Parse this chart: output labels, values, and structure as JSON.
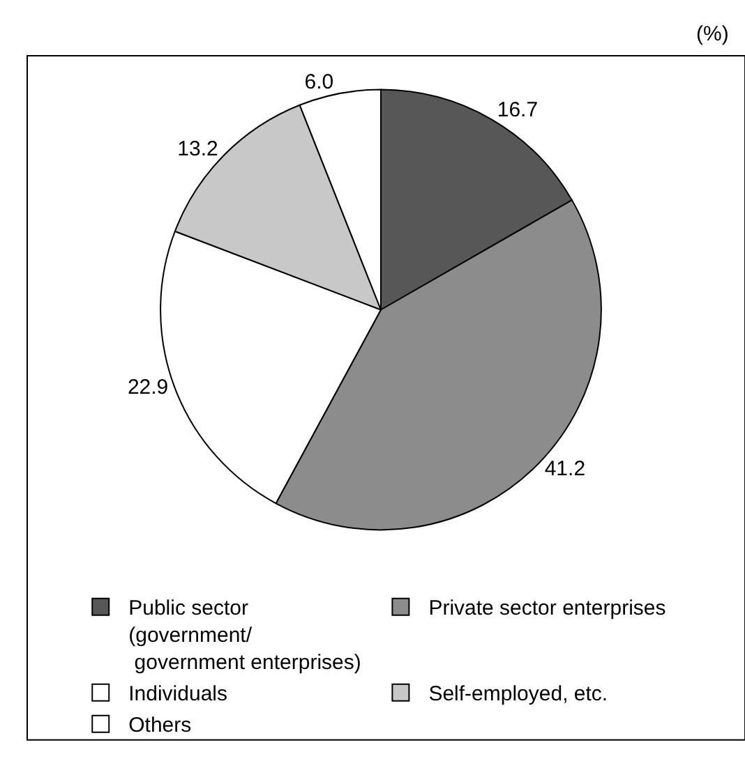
{
  "chart_data": {
    "type": "pie",
    "annotations": [
      "(%)"
    ],
    "categories": [
      "Public sector\n(government/\n government enterprises)",
      "Private sector enterprises",
      "Individuals",
      "Self-employed, etc.",
      "Others"
    ],
    "values": [
      16.7,
      41.2,
      22.9,
      13.2,
      6.0
    ],
    "colors": [
      "#575757",
      "#8c8c8c",
      "#ffffff",
      "#c8c8c8",
      "#ffffff"
    ],
    "value_labels": [
      "16.7",
      "41.2",
      "22.9",
      "13.2",
      "6.0"
    ],
    "legend": "bottom"
  }
}
